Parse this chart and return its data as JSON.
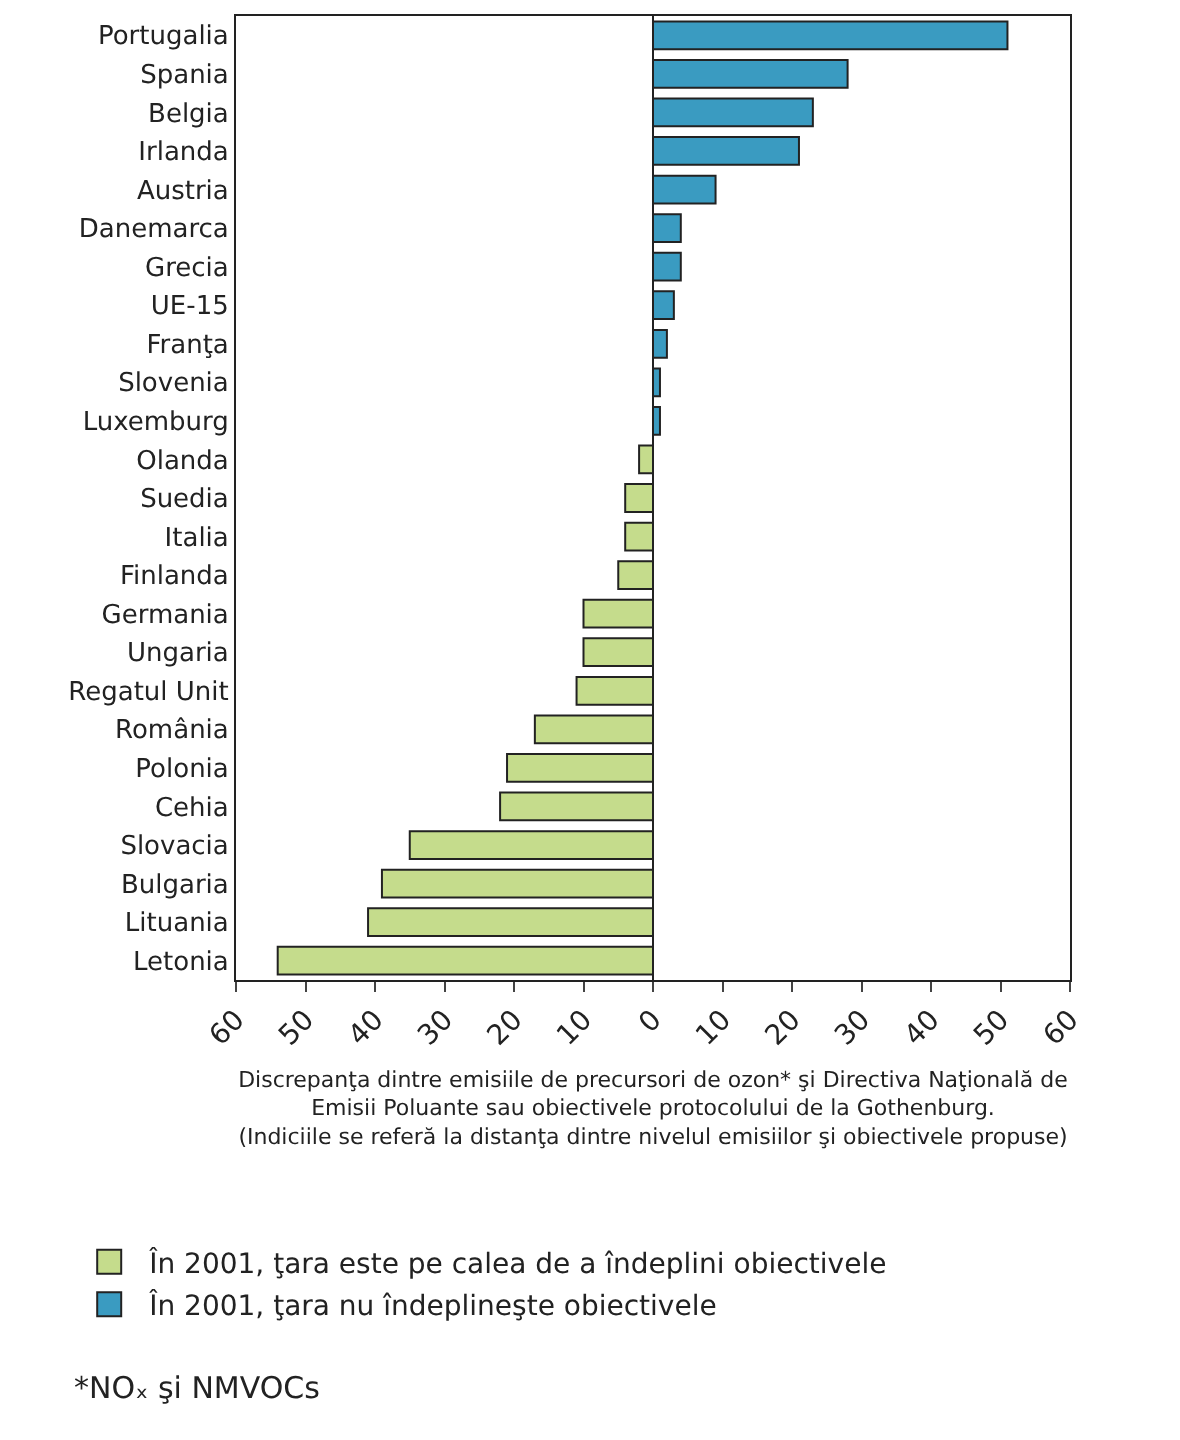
{
  "chart_data": {
    "type": "bar",
    "orientation": "horizontal",
    "xlabel": "Discrepanţa dintre emisiile de precursori de ozon* şi Directiva Naţională de\nEmisii Poluante sau obiectivele protocolului de la Gothenburg.\n(Indiciile se referă la distanţa dintre nivelul emisiilor şi obiectivele propuse)",
    "categories": [
      "Portugalia",
      "Spania",
      "Belgia",
      "Irlanda",
      "Austria",
      "Danemarca",
      "Grecia",
      "UE-15",
      "Franţa",
      "Slovenia",
      "Luxemburg",
      "Olanda",
      "Suedia",
      "Italia",
      "Finlanda",
      "Germania",
      "Ungaria",
      "Regatul Unit",
      "România",
      "Polonia",
      "Cehia",
      "Slovacia",
      "Bulgaria",
      "Lituania",
      "Letonia"
    ],
    "series": [
      {
        "name": "În 2001, ţara este pe calea de a îndeplini obiectivele",
        "color": "#c5dc8c",
        "values": [
          null,
          null,
          null,
          null,
          null,
          null,
          null,
          null,
          null,
          null,
          null,
          -2,
          -4,
          -4,
          -5,
          -10,
          -10,
          -11,
          -17,
          -21,
          -22,
          -35,
          -39,
          -41,
          -54
        ]
      },
      {
        "name": "În 2001, ţara nu îndeplineşte obiectivele",
        "color": "#3a9bc1",
        "values": [
          51,
          28,
          23,
          21,
          9,
          4,
          4,
          3,
          2,
          1,
          1,
          null,
          null,
          null,
          null,
          null,
          null,
          null,
          null,
          null,
          null,
          null,
          null,
          null,
          null
        ]
      }
    ],
    "xlim": [
      -60,
      60
    ],
    "xticks": [
      {
        "value": -60,
        "label": "60"
      },
      {
        "value": -50,
        "label": "50"
      },
      {
        "value": -40,
        "label": "40"
      },
      {
        "value": -30,
        "label": "30"
      },
      {
        "value": -20,
        "label": "20"
      },
      {
        "value": -10,
        "label": "10"
      },
      0,
      10,
      20,
      30,
      40,
      50,
      60
    ],
    "legend": "bottom",
    "stacked": true,
    "ref_lines": [
      {
        "axis": "x",
        "value": 0,
        "color": "#222222"
      }
    ],
    "annotations": [
      "*NOₓ şi NMVOCs"
    ]
  }
}
